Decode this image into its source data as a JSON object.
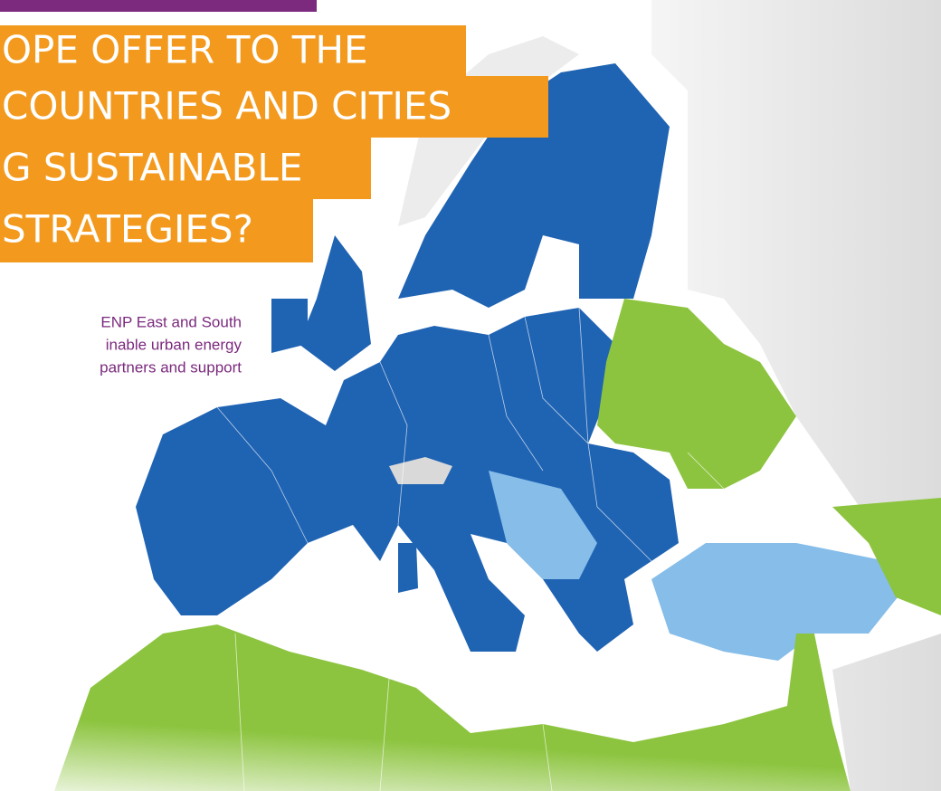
{
  "headline": {
    "lines": [
      "OPE OFFER TO THE",
      "COUNTRIES AND CITIES",
      "G SUSTAINABLE",
      "STRATEGIES?"
    ]
  },
  "body": {
    "lines": [
      "ENP East and South",
      "inable urban energy",
      "partners and support"
    ]
  }
}
